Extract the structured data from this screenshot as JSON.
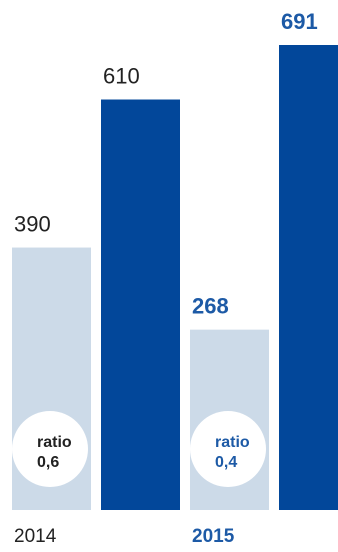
{
  "chart_data": {
    "type": "bar",
    "categories": [
      "2014",
      "2015"
    ],
    "series": [
      {
        "values": [
          390,
          268
        ],
        "value_labels": [
          "390",
          "268"
        ]
      },
      {
        "values": [
          610,
          691
        ],
        "value_labels": [
          "610",
          "691"
        ]
      }
    ],
    "ratios": [
      {
        "line1": "ratio",
        "line2": "0,6"
      },
      {
        "line1": "ratio",
        "line2": "0,4"
      }
    ],
    "ylim": [
      0,
      691
    ],
    "highlighted_category": "2015",
    "grid": false,
    "legend": "none",
    "colors": {
      "light": "#ccdae8",
      "dark": "#02479a",
      "accent_text": "#1d5aa6",
      "default_text": "#222222",
      "circle": "#ffffff"
    }
  }
}
